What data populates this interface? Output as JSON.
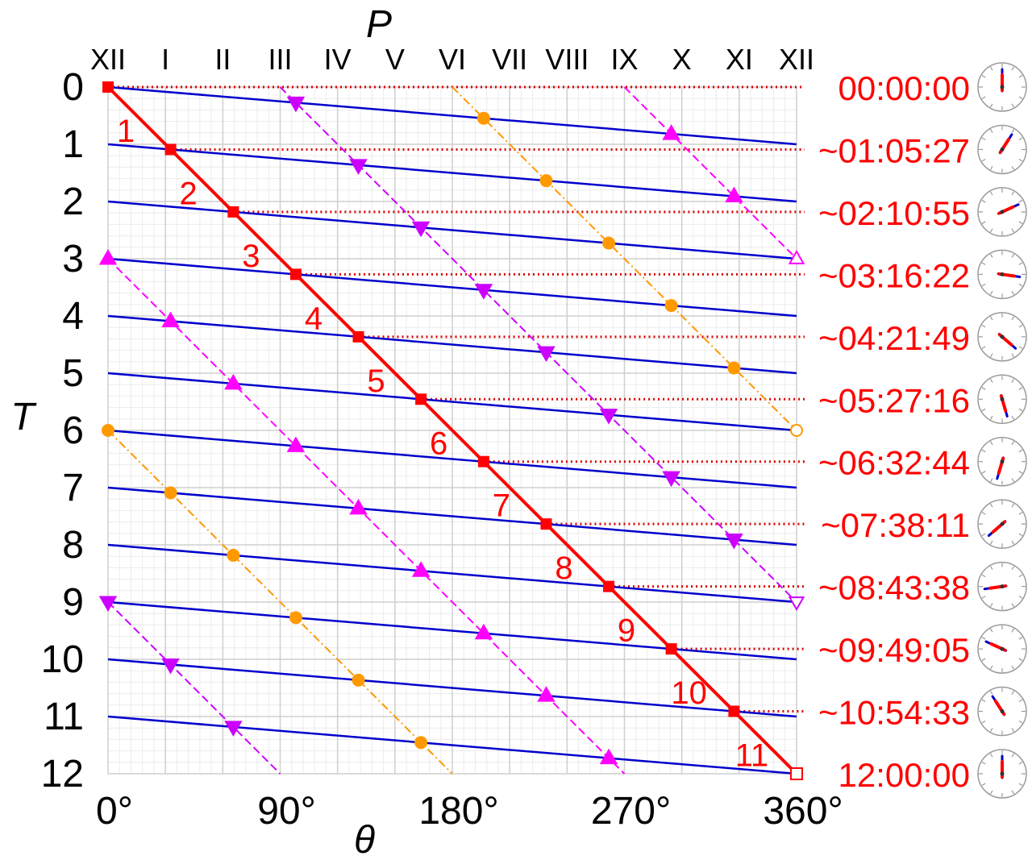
{
  "chart_data": {
    "type": "line",
    "xlabel": "θ",
    "ylabel": "T",
    "top_axis_label": "P",
    "xlim": [
      0,
      360
    ],
    "ylim": [
      0,
      12
    ],
    "grid": true,
    "x_tick_labels": [
      "0°",
      "90°",
      "180°",
      "270°",
      "360°"
    ],
    "x_tick_values": [
      0,
      90,
      180,
      270,
      360
    ],
    "y_tick_labels": [
      "0",
      "1",
      "2",
      "3",
      "4",
      "5",
      "6",
      "7",
      "8",
      "9",
      "10",
      "11",
      "12"
    ],
    "top_tick_labels": [
      "XII",
      "I",
      "II",
      "III",
      "IV",
      "V",
      "VI",
      "VII",
      "VIII",
      "IX",
      "X",
      "XI",
      "XII"
    ],
    "overlap_labels": [
      "1",
      "2",
      "3",
      "4",
      "5",
      "6",
      "7",
      "8",
      "9",
      "10",
      "11"
    ],
    "time_labels": [
      "00:00:00",
      "~01:05:27",
      "~02:10:55",
      "~03:16:22",
      "~04:21:49",
      "~05:27:16",
      "~06:32:44",
      "~07:38:11",
      "~08:43:38",
      "~09:49:05",
      "~10:54:33",
      "12:00:00"
    ],
    "colors": {
      "hour_hand": "#ff0000",
      "minute_hand": "#0000cc",
      "grid": "#cfcfcf",
      "grid_minor": "#ececec",
      "magenta": "#ff00ff",
      "violet": "#cc00ff",
      "orange": "#ff9900",
      "guide": "#dd0000",
      "text": "#000000",
      "time_text": "#ff0000"
    },
    "hour_hand": {
      "x": [
        0,
        360
      ],
      "y": [
        0,
        12
      ]
    },
    "minute_hand_lines": [
      {
        "start": [
          0,
          0
        ],
        "end": [
          360,
          1
        ]
      },
      {
        "start": [
          0,
          1
        ],
        "end": [
          360,
          2
        ]
      },
      {
        "start": [
          0,
          2
        ],
        "end": [
          360,
          3
        ]
      },
      {
        "start": [
          0,
          3
        ],
        "end": [
          360,
          4
        ]
      },
      {
        "start": [
          0,
          4
        ],
        "end": [
          360,
          5
        ]
      },
      {
        "start": [
          0,
          5
        ],
        "end": [
          360,
          6
        ]
      },
      {
        "start": [
          0,
          6
        ],
        "end": [
          360,
          7
        ]
      },
      {
        "start": [
          0,
          7
        ],
        "end": [
          360,
          8
        ]
      },
      {
        "start": [
          0,
          8
        ],
        "end": [
          360,
          9
        ]
      },
      {
        "start": [
          0,
          9
        ],
        "end": [
          360,
          10
        ]
      },
      {
        "start": [
          0,
          10
        ],
        "end": [
          360,
          11
        ]
      },
      {
        "start": [
          0,
          11
        ],
        "end": [
          360,
          12
        ]
      }
    ],
    "overlap_points": {
      "x": [
        0,
        32.7,
        65.5,
        98.2,
        130.9,
        163.6,
        196.4,
        229.1,
        261.8,
        294.5,
        327.3,
        360
      ],
      "y": [
        0,
        1.091,
        2.182,
        3.273,
        4.364,
        5.455,
        6.545,
        7.636,
        8.727,
        9.818,
        10.909,
        12
      ]
    },
    "opposite_lines": [
      {
        "start": [
          180,
          0
        ],
        "end": [
          360,
          6
        ],
        "x": [
          196.4,
          229.1,
          261.8,
          294.5,
          327.3
        ],
        "y": [
          0.545,
          1.636,
          2.727,
          3.818,
          4.909
        ]
      },
      {
        "start": [
          0,
          6
        ],
        "end": [
          180,
          12
        ],
        "x": [
          32.7,
          65.5,
          98.2,
          130.9,
          163.6
        ],
        "y": [
          7.091,
          8.182,
          9.273,
          10.364,
          11.455
        ]
      }
    ],
    "right_angle_lines_up": [
      {
        "start": [
          270,
          0
        ],
        "end": [
          360,
          3
        ],
        "x": [
          294.5,
          327.3
        ],
        "y": [
          0.818,
          1.909
        ]
      },
      {
        "start": [
          0,
          3
        ],
        "end": [
          270,
          12
        ],
        "x": [
          32.7,
          65.5,
          98.2,
          130.9,
          163.6,
          196.4,
          229.1,
          261.8
        ],
        "y": [
          4.091,
          5.182,
          6.273,
          7.364,
          8.455,
          9.545,
          10.636,
          11.727
        ]
      }
    ],
    "right_angle_lines_down": [
      {
        "start": [
          90,
          0
        ],
        "end": [
          360,
          9
        ],
        "x": [
          98.2,
          130.9,
          163.6,
          196.4,
          229.1,
          261.8,
          294.5,
          327.3
        ],
        "y": [
          0.273,
          1.364,
          2.455,
          3.545,
          4.636,
          5.727,
          6.818,
          7.909
        ]
      },
      {
        "start": [
          0,
          9
        ],
        "end": [
          90,
          12
        ],
        "x": [
          32.7,
          65.5
        ],
        "y": [
          10.091,
          11.182
        ]
      }
    ],
    "clock_faces": [
      {
        "hour_angle": 0,
        "minute_angle": 0
      },
      {
        "hour_angle": 32.7,
        "minute_angle": 32.7
      },
      {
        "hour_angle": 65.5,
        "minute_angle": 65.5
      },
      {
        "hour_angle": 98.2,
        "minute_angle": 98.2
      },
      {
        "hour_angle": 130.9,
        "minute_angle": 130.9
      },
      {
        "hour_angle": 163.6,
        "minute_angle": 163.6
      },
      {
        "hour_angle": 196.4,
        "minute_angle": 196.4
      },
      {
        "hour_angle": 229.1,
        "minute_angle": 229.1
      },
      {
        "hour_angle": 261.8,
        "minute_angle": 261.8
      },
      {
        "hour_angle": 294.5,
        "minute_angle": 294.5
      },
      {
        "hour_angle": 327.3,
        "minute_angle": 327.3
      },
      {
        "hour_angle": 0,
        "minute_angle": 0
      }
    ]
  }
}
